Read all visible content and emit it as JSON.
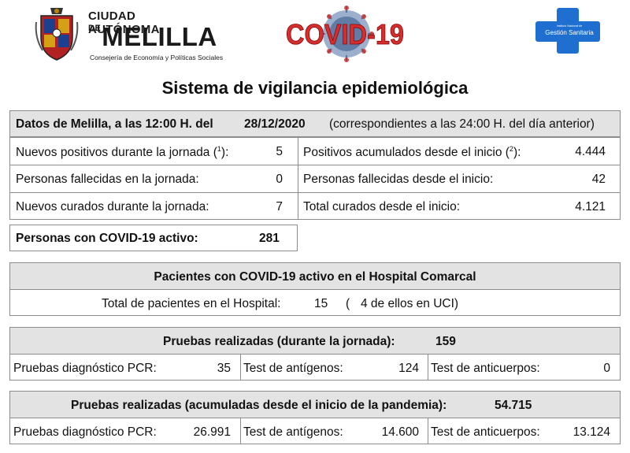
{
  "header": {
    "city_small": "CIUDAD AUTÓNOMA",
    "city_de": "DE",
    "city_big": "MELILLA",
    "city_sub": "Consejería de Economía y Políticas Sociales",
    "covid_logo": "COVID-19",
    "ingesa_line1": "Instituto Nacional de",
    "ingesa_gestion": "Gestión",
    "ingesa_sanitaria": "Sanitaria",
    "shield_icon": "coat-of-arms-icon",
    "virus_icon": "coronavirus-icon",
    "cross_icon": "blue-cross-icon"
  },
  "title": "Sistema de vigilancia epidemiológica",
  "datos": {
    "label": "Datos de Melilla, a  las 12:00 H. del",
    "date": "28/12/2020",
    "note": "(correspondientes a las 24:00 H. del día anterior)"
  },
  "daily": {
    "nuevos_positivos_label": "Nuevos positivos durante la jornada (",
    "nuevos_positivos_sup": "1",
    "nuevos_positivos_close": "):",
    "nuevos_positivos_value": "5",
    "fallecidas_label": "Personas fallecidas en la jornada:",
    "fallecidas_value": "0",
    "curados_label": "Nuevos curados durante la jornada:",
    "curados_value": "7"
  },
  "accumulated": {
    "positivos_label": "Positivos acumulados desde el inicio (",
    "positivos_sup": "2",
    "positivos_close": "):",
    "positivos_value": "4.444",
    "fallecidas_label": "Personas fallecidas desde el inicio:",
    "fallecidas_value": "42",
    "curados_label": "Total curados desde el inicio:",
    "curados_value": "4.121"
  },
  "activos": {
    "label": "Personas con COVID-19 activo:",
    "value": "281"
  },
  "hospital": {
    "title": "Pacientes con COVID-19 activo en el Hospital Comarcal",
    "label": "Total de pacientes en el Hospital:",
    "value": "15",
    "uci_open": "(",
    "uci_text": "4 de ellos en UCI)"
  },
  "pruebas_jornada": {
    "title": "Pruebas realizadas (durante la jornada):",
    "total": "159",
    "pcr_label": "Pruebas diagnóstico PCR:",
    "pcr_value": "35",
    "antigenos_label": "Test de antígenos:",
    "antigenos_value": "124",
    "anticuerpos_label": "Test de anticuerpos:",
    "anticuerpos_value": "0"
  },
  "pruebas_acumuladas": {
    "title": "Pruebas realizadas (acumuladas desde el inicio de la pandemia):",
    "total": "54.715",
    "pcr_label": "Pruebas diagnóstico PCR:",
    "pcr_value": "26.991",
    "antigenos_label": "Test de antígenos:",
    "antigenos_value": "14.600",
    "anticuerpos_label": "Test de  anticuerpos:",
    "anticuerpos_value": "13.124"
  }
}
